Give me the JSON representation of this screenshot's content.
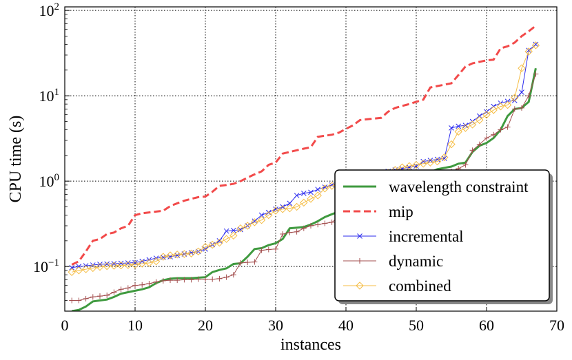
{
  "chart_data": {
    "type": "line",
    "xlabel": "instances",
    "ylabel": "CPU time (s)",
    "xlim": [
      0,
      70
    ],
    "ylim": [
      0.03,
      110
    ],
    "yscale": "log",
    "grid": true,
    "legend_position": "bottom-right",
    "x_ticks": [
      0,
      10,
      20,
      30,
      40,
      50,
      60,
      70
    ],
    "y_ticks": [
      {
        "value": 0.1,
        "base": "10",
        "exp": "−1"
      },
      {
        "value": 1,
        "base": "10",
        "exp": "0"
      },
      {
        "value": 10,
        "base": "10",
        "exp": "1"
      },
      {
        "value": 100,
        "base": "10",
        "exp": "2"
      }
    ],
    "series": [
      {
        "name": "wavelength constraint",
        "color": "#3f9a3f",
        "style": "solid",
        "marker": "none",
        "x": [
          1,
          2,
          3,
          4,
          5,
          6,
          7,
          8,
          9,
          10,
          11,
          12,
          13,
          14,
          15,
          16,
          17,
          18,
          19,
          20,
          21,
          22,
          23,
          24,
          25,
          26,
          27,
          28,
          29,
          30,
          31,
          32,
          33,
          34,
          35,
          36,
          37,
          38,
          39,
          40,
          41,
          42,
          43,
          44,
          45,
          46,
          47,
          48,
          49,
          50,
          51,
          52,
          53,
          54,
          55,
          56,
          57,
          58,
          59,
          60,
          61,
          62,
          63,
          64,
          65,
          66,
          67
        ],
        "y": [
          0.03,
          0.031,
          0.034,
          0.039,
          0.04,
          0.041,
          0.044,
          0.048,
          0.05,
          0.052,
          0.054,
          0.057,
          0.064,
          0.069,
          0.072,
          0.073,
          0.073,
          0.073,
          0.074,
          0.075,
          0.086,
          0.091,
          0.095,
          0.107,
          0.109,
          0.13,
          0.16,
          0.164,
          0.178,
          0.187,
          0.21,
          0.28,
          0.285,
          0.29,
          0.31,
          0.34,
          0.38,
          0.41,
          0.44,
          0.48,
          0.52,
          0.57,
          0.63,
          0.68,
          0.73,
          0.79,
          0.85,
          0.92,
          1.0,
          1.08,
          1.17,
          1.27,
          1.38,
          1.43,
          1.48,
          1.6,
          1.65,
          2.2,
          2.6,
          2.8,
          3.2,
          4.0,
          5.8,
          7.0,
          7.2,
          8.5,
          21.0
        ]
      },
      {
        "name": "mip",
        "color": "#f24a4a",
        "style": "dashed",
        "marker": "none",
        "x": [
          1,
          2,
          3,
          4,
          5,
          6,
          7,
          8,
          9,
          10,
          11,
          12,
          13,
          14,
          15,
          16,
          17,
          18,
          19,
          20,
          21,
          22,
          23,
          24,
          25,
          26,
          27,
          28,
          29,
          30,
          31,
          32,
          33,
          34,
          35,
          36,
          37,
          38,
          39,
          40,
          41,
          42,
          43,
          44,
          45,
          46,
          47,
          48,
          49,
          50,
          51,
          52,
          53,
          54,
          55,
          56,
          57,
          58,
          59,
          60,
          61,
          62,
          63,
          64,
          65,
          66,
          67
        ],
        "y": [
          0.105,
          0.115,
          0.15,
          0.2,
          0.21,
          0.24,
          0.25,
          0.28,
          0.3,
          0.4,
          0.42,
          0.43,
          0.44,
          0.45,
          0.51,
          0.55,
          0.59,
          0.62,
          0.65,
          0.66,
          0.75,
          0.88,
          0.9,
          0.93,
          1.0,
          1.1,
          1.2,
          1.3,
          1.55,
          1.65,
          2.1,
          2.2,
          2.3,
          2.4,
          2.5,
          3.3,
          3.4,
          3.5,
          3.7,
          4.1,
          4.5,
          5.2,
          5.3,
          5.4,
          5.5,
          6.5,
          7.2,
          7.6,
          8.0,
          8.5,
          9.0,
          12.5,
          13.0,
          13.5,
          14.0,
          17.5,
          22.0,
          24.0,
          25.0,
          26.0,
          26.5,
          36.0,
          38.0,
          42.0,
          50.0,
          57.0,
          66.0
        ]
      },
      {
        "name": "incremental",
        "color": "#2a2aee",
        "style": "solid",
        "marker": "x",
        "x": [
          1,
          2,
          3,
          4,
          5,
          6,
          7,
          8,
          9,
          10,
          11,
          12,
          13,
          14,
          15,
          16,
          17,
          18,
          19,
          20,
          21,
          22,
          23,
          24,
          25,
          26,
          27,
          28,
          29,
          30,
          31,
          32,
          33,
          34,
          35,
          36,
          37,
          38,
          39,
          40,
          41,
          42,
          43,
          44,
          45,
          46,
          47,
          48,
          49,
          50,
          51,
          52,
          53,
          54,
          55,
          56,
          57,
          58,
          59,
          60,
          61,
          62,
          63,
          64,
          65,
          66,
          67
        ],
        "y": [
          0.097,
          0.1,
          0.102,
          0.104,
          0.106,
          0.107,
          0.108,
          0.109,
          0.11,
          0.111,
          0.115,
          0.12,
          0.125,
          0.128,
          0.13,
          0.135,
          0.14,
          0.145,
          0.15,
          0.16,
          0.18,
          0.2,
          0.26,
          0.265,
          0.27,
          0.3,
          0.34,
          0.4,
          0.43,
          0.47,
          0.5,
          0.55,
          0.68,
          0.72,
          0.74,
          0.8,
          0.85,
          0.9,
          0.95,
          1.0,
          1.05,
          1.1,
          1.15,
          1.2,
          1.25,
          1.3,
          1.35,
          1.4,
          1.45,
          1.5,
          1.7,
          1.75,
          1.8,
          1.85,
          4.2,
          4.4,
          4.5,
          5.0,
          5.8,
          6.5,
          7.5,
          8.2,
          8.6,
          8.8,
          11.0,
          34.0,
          40.0
        ]
      },
      {
        "name": "dynamic",
        "color": "#a34e4e",
        "style": "solid",
        "marker": "+",
        "x": [
          1,
          2,
          3,
          4,
          5,
          6,
          7,
          8,
          9,
          10,
          11,
          12,
          13,
          14,
          15,
          16,
          17,
          18,
          19,
          20,
          21,
          22,
          23,
          24,
          25,
          26,
          27,
          28,
          29,
          30,
          31,
          32,
          33,
          34,
          35,
          36,
          37,
          38,
          39,
          40,
          41,
          42,
          43,
          44,
          45,
          46,
          47,
          48,
          49,
          50,
          51,
          52,
          53,
          54,
          55,
          56,
          57,
          58,
          59,
          60,
          61,
          62,
          63,
          64,
          65,
          66,
          67
        ],
        "y": [
          0.04,
          0.04,
          0.042,
          0.044,
          0.045,
          0.046,
          0.05,
          0.054,
          0.056,
          0.06,
          0.061,
          0.063,
          0.066,
          0.068,
          0.069,
          0.069,
          0.07,
          0.07,
          0.071,
          0.071,
          0.071,
          0.072,
          0.075,
          0.08,
          0.11,
          0.112,
          0.113,
          0.155,
          0.158,
          0.16,
          0.24,
          0.25,
          0.255,
          0.28,
          0.3,
          0.31,
          0.32,
          0.33,
          0.38,
          0.42,
          0.46,
          0.5,
          0.55,
          0.6,
          0.65,
          0.7,
          0.75,
          0.8,
          0.85,
          0.9,
          0.95,
          1.0,
          1.1,
          1.2,
          1.3,
          1.4,
          1.55,
          2.3,
          2.7,
          3.2,
          3.5,
          4.0,
          4.3,
          7.0,
          7.2,
          10.0,
          18.0
        ]
      },
      {
        "name": "combined",
        "color": "#f5bd45",
        "style": "solid",
        "marker": "diamond",
        "x": [
          1,
          2,
          3,
          4,
          5,
          6,
          7,
          8,
          9,
          10,
          11,
          12,
          13,
          14,
          15,
          16,
          17,
          18,
          19,
          20,
          21,
          22,
          23,
          24,
          25,
          26,
          27,
          28,
          29,
          30,
          31,
          32,
          33,
          34,
          35,
          36,
          37,
          38,
          39,
          40,
          41,
          42,
          43,
          44,
          45,
          46,
          47,
          48,
          49,
          50,
          51,
          52,
          53,
          54,
          55,
          56,
          57,
          58,
          59,
          60,
          61,
          62,
          63,
          64,
          65,
          66,
          67
        ],
        "y": [
          0.086,
          0.09,
          0.093,
          0.096,
          0.099,
          0.101,
          0.102,
          0.103,
          0.104,
          0.105,
          0.108,
          0.11,
          0.115,
          0.13,
          0.135,
          0.138,
          0.14,
          0.142,
          0.15,
          0.17,
          0.18,
          0.19,
          0.21,
          0.23,
          0.28,
          0.3,
          0.33,
          0.35,
          0.4,
          0.45,
          0.47,
          0.48,
          0.5,
          0.56,
          0.62,
          0.68,
          0.82,
          0.88,
          0.92,
          0.96,
          1.0,
          1.05,
          1.1,
          1.15,
          1.2,
          1.25,
          1.35,
          1.45,
          1.5,
          1.55,
          1.6,
          1.65,
          1.7,
          1.9,
          2.7,
          3.8,
          4.2,
          4.6,
          5.2,
          6.0,
          6.8,
          7.5,
          7.8,
          9.5,
          21.0,
          33.0,
          39.0
        ]
      }
    ]
  }
}
